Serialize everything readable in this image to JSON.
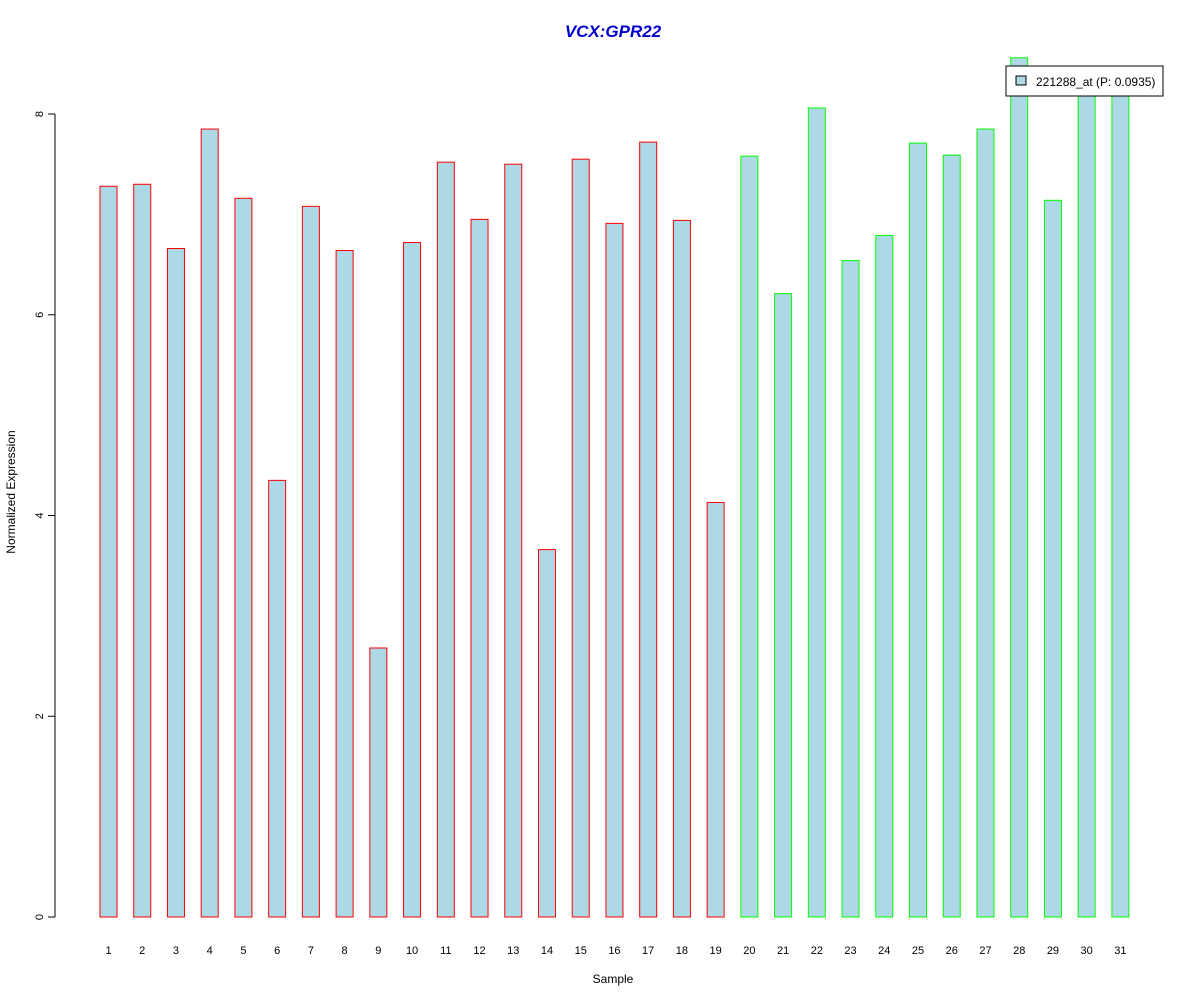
{
  "chart_data": {
    "type": "bar",
    "title": "VCX:GPR22",
    "xlabel": "Sample",
    "ylabel": "Normalized Expression",
    "categories": [
      "1",
      "2",
      "3",
      "4",
      "5",
      "6",
      "7",
      "8",
      "9",
      "10",
      "11",
      "12",
      "13",
      "14",
      "15",
      "16",
      "17",
      "18",
      "19",
      "20",
      "21",
      "22",
      "23",
      "24",
      "25",
      "26",
      "27",
      "28",
      "29",
      "30",
      "31"
    ],
    "values": [
      7.28,
      7.3,
      6.66,
      7.85,
      7.16,
      4.35,
      7.08,
      6.64,
      2.68,
      6.72,
      7.52,
      6.95,
      7.5,
      3.66,
      7.55,
      6.91,
      7.72,
      6.94,
      4.13,
      7.58,
      6.21,
      8.06,
      6.54,
      6.79,
      7.71,
      7.59,
      7.85,
      8.56,
      7.14,
      8.29,
      8.29
    ],
    "groups": [
      1,
      1,
      1,
      1,
      1,
      1,
      1,
      1,
      1,
      1,
      1,
      1,
      1,
      1,
      1,
      1,
      1,
      1,
      1,
      2,
      2,
      2,
      2,
      2,
      2,
      2,
      2,
      2,
      2,
      2,
      2
    ],
    "ylim": [
      0,
      8
    ],
    "yticks": [
      0,
      2,
      4,
      6,
      8
    ],
    "grid": false,
    "legend": {
      "position": "top-right",
      "entries": [
        {
          "label": "221288_at (P: 0.0935)"
        }
      ]
    },
    "colors": {
      "bar_fill": "#add8e6",
      "group1_border": "#ff0000",
      "group2_border": "#00ff00",
      "title": "#0000cd",
      "axis": "#000000"
    }
  }
}
